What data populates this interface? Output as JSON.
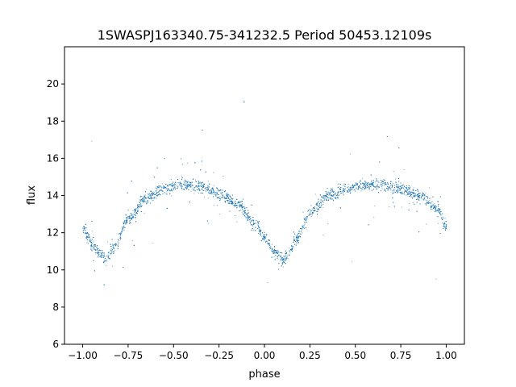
{
  "chart_data": {
    "type": "scatter",
    "title": "1SWASPJ163340.75-341232.5 Period 50453.12109s",
    "xlabel": "phase",
    "ylabel": "flux",
    "xlim": [
      -1.1,
      1.1
    ],
    "ylim": [
      6,
      22
    ],
    "xticks": [
      -1.0,
      -0.75,
      -0.5,
      -0.25,
      0.0,
      0.25,
      0.5,
      0.75,
      1.0
    ],
    "xtick_labels": [
      "−1.00",
      "−0.75",
      "−0.50",
      "−0.25",
      "0.00",
      "0.25",
      "0.50",
      "0.75",
      "1.00"
    ],
    "yticks": [
      6,
      8,
      10,
      12,
      14,
      16,
      18,
      20
    ],
    "ytick_labels": [
      "6",
      "8",
      "10",
      "12",
      "14",
      "16",
      "18",
      "20"
    ],
    "grid": false,
    "marker_color": "#1f77b4",
    "curve": {
      "description_points_phase": [
        -1.0,
        -0.95,
        -0.9,
        -0.87,
        -0.83,
        -0.75,
        -0.65,
        -0.55,
        -0.45,
        -0.35,
        -0.25,
        -0.15,
        -0.05,
        0.0,
        0.05,
        0.1,
        0.13,
        0.17,
        0.25,
        0.35,
        0.45,
        0.55,
        0.65,
        0.75,
        0.85,
        0.95,
        1.0
      ],
      "description_points_flux": [
        12.3,
        11.4,
        10.8,
        10.6,
        11.2,
        12.8,
        13.9,
        14.4,
        14.6,
        14.5,
        14.1,
        13.6,
        12.5,
        11.7,
        11.0,
        10.6,
        10.9,
        11.6,
        13.1,
        14.0,
        14.4,
        14.6,
        14.6,
        14.4,
        14.0,
        13.3,
        12.3
      ]
    }
  }
}
